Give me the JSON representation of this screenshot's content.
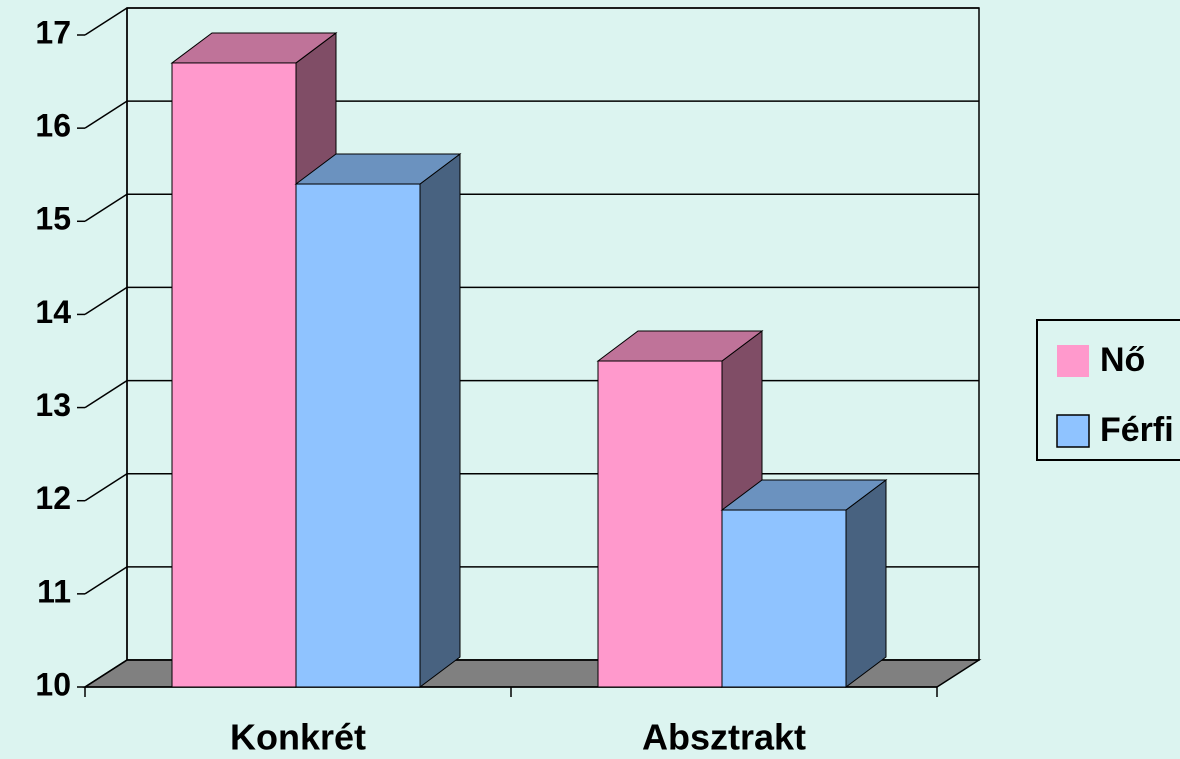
{
  "chart_data": {
    "type": "bar3d",
    "categories": [
      "Konkrét",
      "Absztrakt"
    ],
    "series": [
      {
        "name": "Nő",
        "color": "#ff99cc",
        "values": [
          16.7,
          13.5
        ]
      },
      {
        "name": "Férfi",
        "color": "#8fc3ff",
        "values": [
          15.4,
          11.9
        ]
      }
    ],
    "ylim": [
      10,
      17
    ],
    "yticks": [
      10,
      11,
      12,
      13,
      14,
      15,
      16,
      17
    ],
    "grid": true,
    "legend": "right"
  }
}
